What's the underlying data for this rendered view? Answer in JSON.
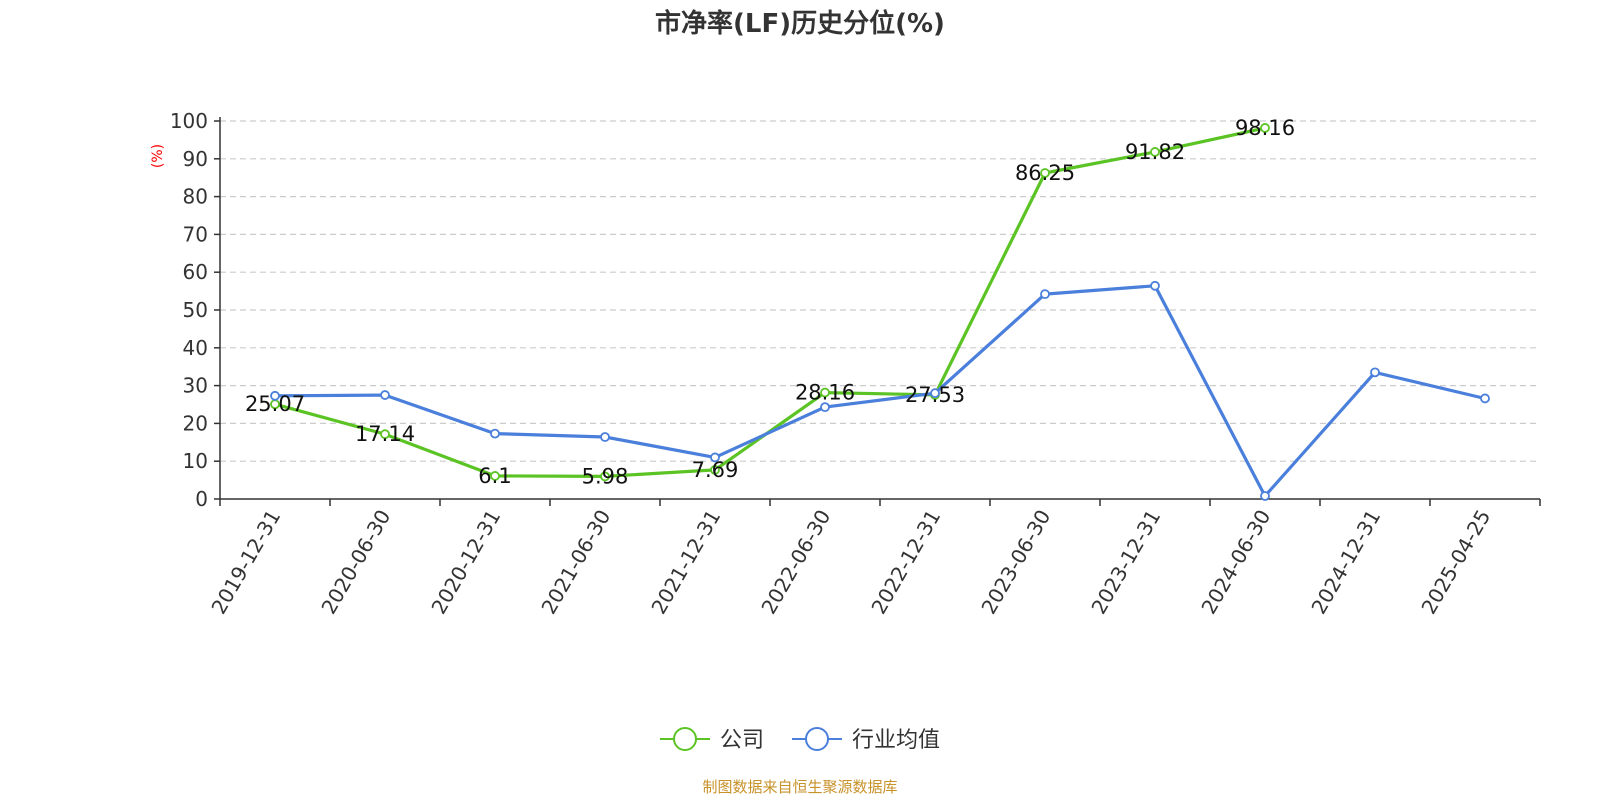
{
  "title": "市净率(LF)历史分位(%)",
  "source": "制图数据来自恒生聚源数据库",
  "chart_data": {
    "type": "line",
    "title": "市净率(LF)历史分位(%)",
    "ylabel": "(%)",
    "ylim": [
      0,
      100
    ],
    "yticks": [
      "0",
      "10",
      "20",
      "30",
      "40",
      "50",
      "60",
      "70",
      "80",
      "90",
      "100"
    ],
    "grid": true,
    "legend_position": "bottom-center",
    "categories": [
      "2019-12-31",
      "2020-06-30",
      "2020-12-31",
      "2021-06-30",
      "2021-12-31",
      "2022-06-30",
      "2022-12-31",
      "2023-06-30",
      "2023-12-31",
      "2024-06-30",
      "2024-12-31",
      "2025-04-25"
    ],
    "series": [
      {
        "name": "公司",
        "color": "#5bc424",
        "values": [
          25.07,
          17.14,
          6.1,
          5.98,
          7.69,
          28.16,
          27.53,
          86.25,
          91.82,
          98.16,
          null,
          null
        ],
        "labels": [
          "25.07",
          "17.14",
          "6.1",
          "5.98",
          "7.69",
          "28.16",
          "27.53",
          "86.25",
          "91.82",
          "98.16",
          "",
          ""
        ]
      },
      {
        "name": "行业均值",
        "color": "#4a7fdb",
        "values": [
          27.3,
          27.5,
          17.3,
          16.4,
          11.0,
          24.3,
          28.0,
          54.2,
          56.4,
          0.8,
          33.5,
          26.6
        ],
        "labels": []
      }
    ]
  }
}
